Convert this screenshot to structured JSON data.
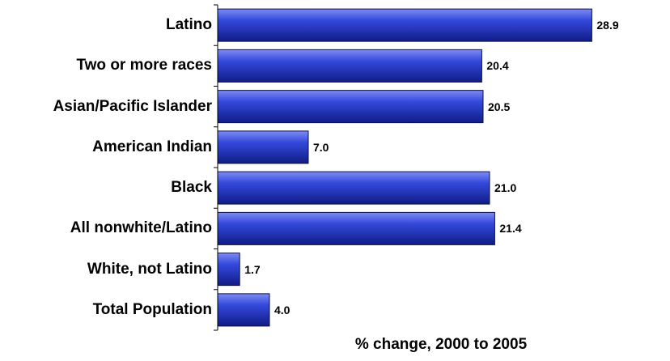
{
  "chart_data": {
    "type": "bar",
    "orientation": "horizontal",
    "categories": [
      "Latino",
      "Two or more races",
      "Asian/Pacific Islander",
      "American Indian",
      "Black",
      "All nonwhite/Latino",
      "White, not Latino",
      "Total Population"
    ],
    "values": [
      28.9,
      20.4,
      20.5,
      7.0,
      21.0,
      21.4,
      1.7,
      4.0
    ],
    "value_labels": [
      "28.9",
      "20.4",
      "20.5",
      "7.0",
      "21.0",
      "21.4",
      "1.7",
      "4.0"
    ],
    "title": "",
    "xlabel": "% change, 2000 to 2005",
    "ylabel": "",
    "xlim": [
      0,
      35
    ],
    "grid": false,
    "legend": "none",
    "bar_color": "#2b3fd6"
  }
}
